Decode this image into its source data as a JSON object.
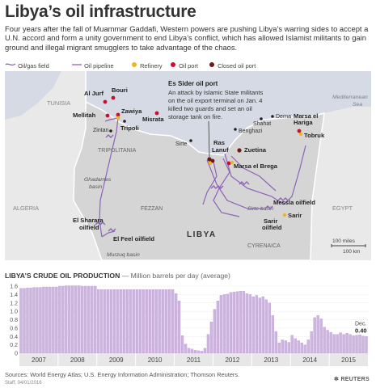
{
  "header": {
    "title": "Libya’s oil infrastructure",
    "intro": "Four years after the fall of Muammar Gaddafi, Western powers are pushing Libya’s warring sides to accept a U.N. accord and form a unity government to end Libya’s conflict, which has allowed Islamist militants to gain ground and illegal migrant smugglers to take advantage of the chaos."
  },
  "legend": {
    "field": "Oil/gas field",
    "pipeline": "Oil pipeline",
    "refinery": "Refinery",
    "port": "Oil port",
    "closed_port": "Closed oil port"
  },
  "colors": {
    "land": "#e9e9e9",
    "sea": "#d5dae4",
    "libya": "#d5d5d5",
    "pipeline": "#8e63b8",
    "oil_port": "#c8102e",
    "closed_port": "#6b1a14",
    "refinery": "#f0b323",
    "bar": "#cdb6dc",
    "bar_edge": "#a486c2"
  },
  "map": {
    "countries": {
      "tunisia": "TUNISIA",
      "algeria": "ALGERIA",
      "egypt": "EGYPT",
      "libya": "LIBYA"
    },
    "sea": "Mediterranean Sea",
    "regions": {
      "tripolitania": "TRIPOLITANIA",
      "fezzan": "FEZZAN",
      "cyrenaica": "CYRENAICA"
    },
    "basins": {
      "ghadames": "Ghadames basin",
      "sirte": "Sirte basin",
      "murzuq": "Murzuq basin"
    },
    "places": {
      "al_jurf": "Al Jurf",
      "bouri": "Bouri",
      "mellitah": "Mellitah",
      "zawiya": "Zawiya",
      "zintan": "Zintan",
      "tripoli": "Tripoli",
      "misrata": "Misrata",
      "sirte": "Sirte",
      "ras_lanuf": "Ras Lanuf",
      "zueitina": "Zuetina",
      "marsa_el_brega": "Marsa el Brega",
      "benghazi": "Benghazi",
      "shahat": "Shahat",
      "derna": "Derna",
      "marsa_el_hariga": "Marsa el Hariga",
      "tobruk": "Tobruk",
      "messla": "Messla oilfield",
      "sarir": "Sarir",
      "sarir_oilfield": "Sarir oilfield",
      "el_sharara": "El Sharara oilfield",
      "el_feel": "El Feel oilfield"
    },
    "callout": {
      "title": "Es Sider oil port",
      "text": "An attack by Islamic State militants on the oil export terminal on Jan. 4 killed two guards and set an oil storage tank on fire."
    },
    "scale": {
      "miles": "100 miles",
      "km": "100 km"
    }
  },
  "production": {
    "title": "LIBYA’S CRUDE OIL PRODUCTION",
    "subtitle": "— Million barrels per day (average)"
  },
  "chart_data": {
    "type": "bar",
    "title": "LIBYA’S CRUDE OIL PRODUCTION",
    "ylabel": "Million barrels per day (average)",
    "ylim": [
      0,
      1.6
    ],
    "yticks": [
      "0",
      "0.2",
      "0.4",
      "0.6",
      "0.8",
      "1.0",
      "1.2",
      "1.4",
      "1.6"
    ],
    "years": [
      "2007",
      "2008",
      "2009",
      "2010",
      "2011",
      "2012",
      "2013",
      "2014",
      "2015"
    ],
    "frequency": "monthly, Jan 2007 - Dec 2015",
    "values": [
      1.55,
      1.55,
      1.56,
      1.56,
      1.57,
      1.57,
      1.57,
      1.58,
      1.58,
      1.58,
      1.58,
      1.58,
      1.6,
      1.6,
      1.61,
      1.61,
      1.61,
      1.61,
      1.61,
      1.6,
      1.6,
      1.6,
      1.6,
      1.6,
      1.52,
      1.52,
      1.52,
      1.52,
      1.52,
      1.52,
      1.52,
      1.52,
      1.52,
      1.52,
      1.52,
      1.52,
      1.52,
      1.52,
      1.52,
      1.52,
      1.52,
      1.52,
      1.52,
      1.52,
      1.52,
      1.52,
      1.52,
      1.52,
      1.42,
      1.25,
      0.42,
      0.22,
      0.12,
      0.1,
      0.07,
      0.06,
      0.05,
      0.12,
      0.45,
      0.75,
      1.05,
      1.25,
      1.38,
      1.4,
      1.41,
      1.45,
      1.46,
      1.47,
      1.48,
      1.48,
      1.42,
      1.4,
      1.35,
      1.38,
      1.32,
      1.35,
      1.28,
      1.2,
      0.9,
      0.52,
      0.25,
      0.32,
      0.3,
      0.26,
      0.43,
      0.35,
      0.3,
      0.25,
      0.2,
      0.32,
      0.52,
      0.85,
      0.9,
      0.82,
      0.62,
      0.55,
      0.5,
      0.45,
      0.45,
      0.49,
      0.45,
      0.48,
      0.45,
      0.42,
      0.43,
      0.44,
      0.41,
      0.4
    ],
    "annotation": {
      "label": "Dec.",
      "value": "0.40"
    },
    "grid": true,
    "legend": "none"
  },
  "footer": {
    "sources": "Sources: World Energy Atlas; U.S. Energy Information Administration; Thomson Reuters.",
    "staff": "Staff, 04/01/2016",
    "brand": "REUTERS"
  }
}
